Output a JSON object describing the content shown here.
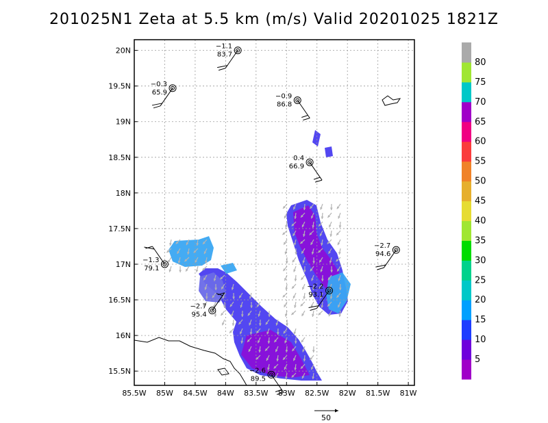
{
  "title": "201025N1  Zeta at 5.5 km (m/s) Valid 20201025  1821Z",
  "axes": {
    "lon_range": [
      -85.5,
      -80.9
    ],
    "lat_range": [
      15.3,
      20.15
    ],
    "x_ticks": [
      {
        "lon": -85.5,
        "label": "85.5W"
      },
      {
        "lon": -85.0,
        "label": "85W"
      },
      {
        "lon": -84.5,
        "label": "84.5W"
      },
      {
        "lon": -84.0,
        "label": "84W"
      },
      {
        "lon": -83.5,
        "label": "83.5W"
      },
      {
        "lon": -83.0,
        "label": "83W"
      },
      {
        "lon": -82.5,
        "label": "82.5W"
      },
      {
        "lon": -82.0,
        "label": "82W"
      },
      {
        "lon": -81.5,
        "label": "81.5W"
      },
      {
        "lon": -81.0,
        "label": "81W"
      }
    ],
    "y_ticks": [
      {
        "lat": 15.5,
        "label": "15.5N"
      },
      {
        "lat": 16.0,
        "label": "16N"
      },
      {
        "lat": 16.5,
        "label": "16.5N"
      },
      {
        "lat": 17.0,
        "label": "17N"
      },
      {
        "lat": 17.5,
        "label": "17.5N"
      },
      {
        "lat": 18.0,
        "label": "18N"
      },
      {
        "lat": 18.5,
        "label": "18.5N"
      },
      {
        "lat": 19.0,
        "label": "19N"
      },
      {
        "lat": 19.5,
        "label": "19.5N"
      },
      {
        "lat": 20.0,
        "label": "20N"
      }
    ]
  },
  "colorbar": {
    "labels": [
      "5",
      "10",
      "15",
      "20",
      "25",
      "30",
      "35",
      "40",
      "45",
      "50",
      "55",
      "60",
      "65",
      "70",
      "75",
      "80"
    ],
    "colors": [
      "#a000c8",
      "#6e00dc",
      "#1e3cff",
      "#00a0ff",
      "#00c8c8",
      "#00d28c",
      "#00dc00",
      "#a0e632",
      "#e6dc32",
      "#e6af2d",
      "#f08228",
      "#fa3c3c",
      "#f00082",
      "#a000c8",
      "#00c8c8",
      "#a0e632",
      "#aaaaaa"
    ]
  },
  "stations": [
    {
      "lon": -83.8,
      "lat": 20.0,
      "top": "−1.1",
      "bottom": "83.7"
    },
    {
      "lon": -84.87,
      "lat": 19.47,
      "top": "−0.3",
      "bottom": "65.9"
    },
    {
      "lon": -82.82,
      "lat": 19.3,
      "top": "−0.9",
      "bottom": "86.8"
    },
    {
      "lon": -82.62,
      "lat": 18.43,
      "top": "0.4",
      "bottom": "66.9"
    },
    {
      "lon": -81.2,
      "lat": 17.2,
      "top": "−2.7",
      "bottom": "94.6"
    },
    {
      "lon": -85.0,
      "lat": 17.0,
      "top": "−1.3",
      "bottom": "79.1"
    },
    {
      "lon": -82.3,
      "lat": 16.63,
      "top": "−2.2",
      "bottom": "93.1"
    },
    {
      "lon": -84.22,
      "lat": 16.35,
      "top": "−2.7",
      "bottom": "95.4"
    },
    {
      "lon": -83.25,
      "lat": 15.45,
      "top": "−2.6",
      "bottom": "89.5"
    }
  ],
  "reference_vector": {
    "label": "50"
  }
}
